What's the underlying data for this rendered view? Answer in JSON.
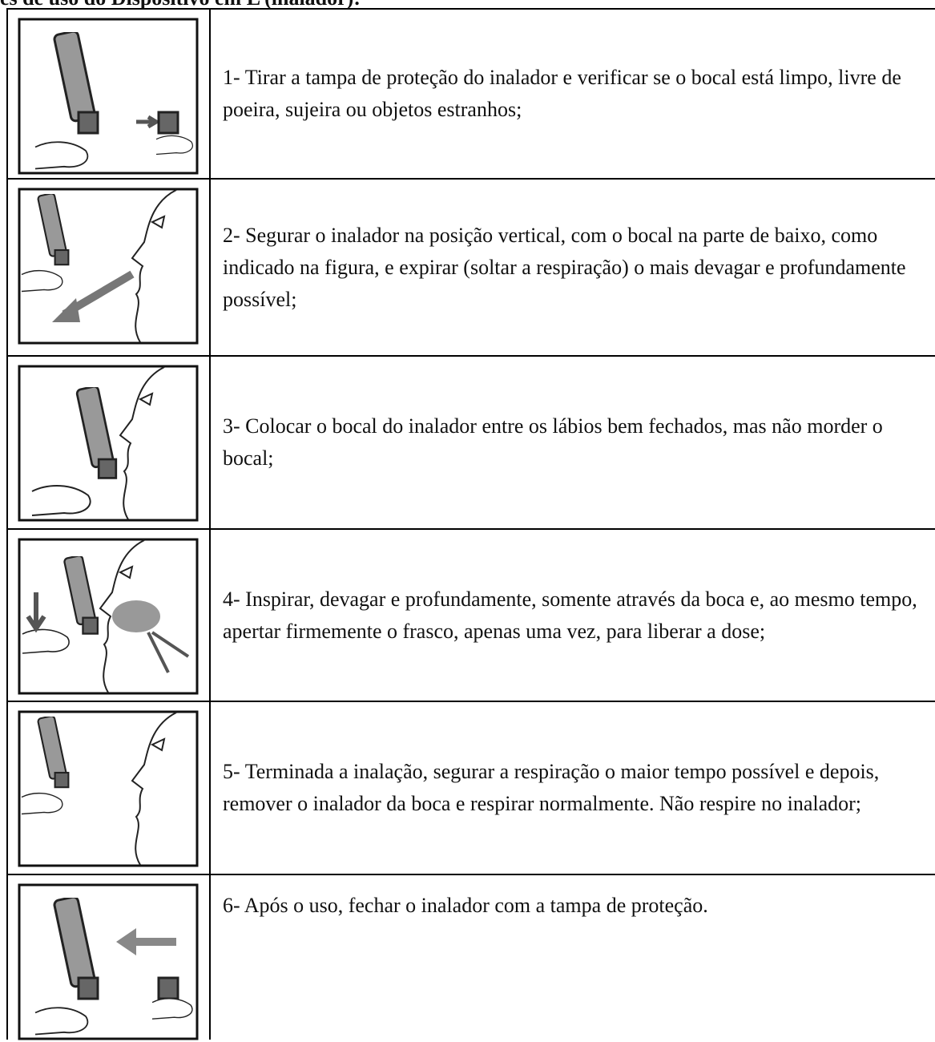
{
  "header": {
    "title": "es de uso do Dispositivo em L (inalador):"
  },
  "steps": [
    "1- Tirar a tampa de proteção do inalador e verificar se o bocal está limpo, livre de poeira, sujeira ou objetos estranhos;",
    "2- Segurar o inalador na posição vertical, com o bocal na parte de baixo, como indicado na figura, e expirar (soltar a respiração) o mais devagar e profundamente possível;",
    "3- Colocar o bocal do inalador entre os lábios bem fechados, mas não morder o bocal;",
    "4- Inspirar, devagar e profundamente, somente através da boca e, ao mesmo tempo, apertar firmemente o frasco, apenas uma vez, para liberar a dose;",
    "5- Terminada a inalação, segurar a respiração o maior tempo possível e depois, remover o inalador da boca e respirar normalmente. Não respire no inalador;",
    "6- Após o uso, fechar o inalador com a tampa de proteção."
  ]
}
